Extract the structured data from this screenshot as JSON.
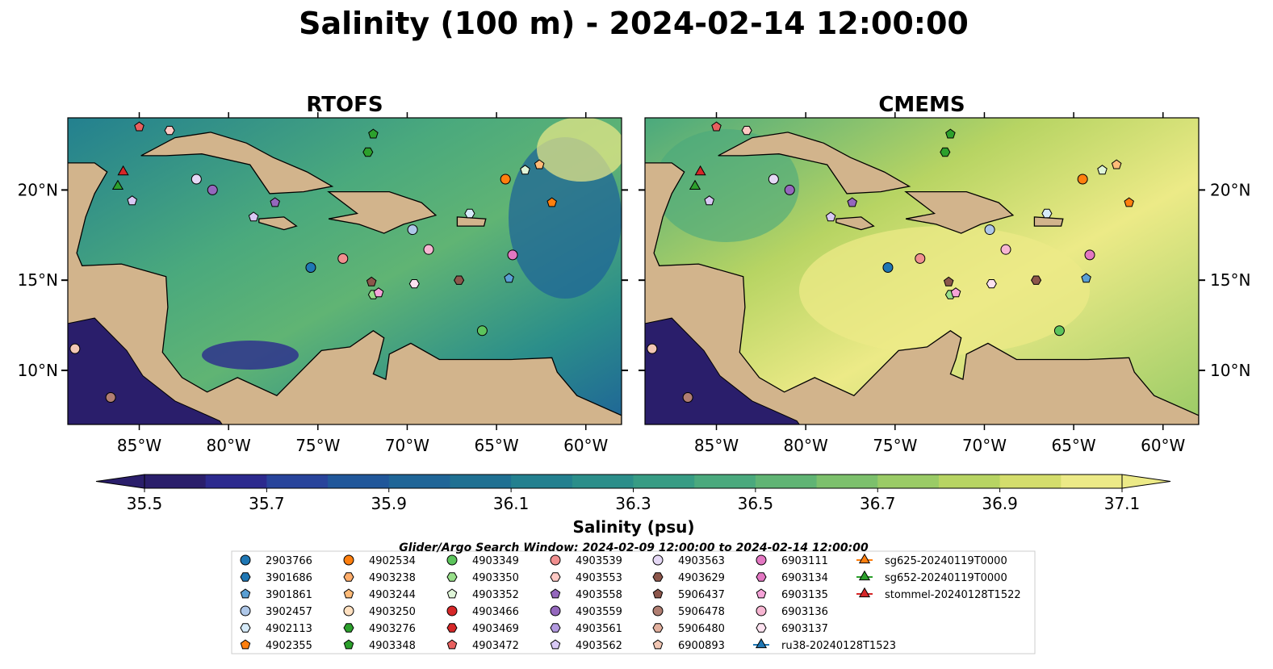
{
  "chart_data": {
    "type": "map",
    "title": "Salinity (100 m) - 2024-02-14 12:00:00",
    "panels": [
      {
        "title": "RTOFS"
      },
      {
        "title": "CMEMS"
      }
    ],
    "lon_range": [
      -89,
      -58
    ],
    "lat_range": [
      7,
      24
    ],
    "x_ticks": [
      "85°W",
      "80°W",
      "75°W",
      "70°W",
      "65°W",
      "60°W"
    ],
    "y_ticks": [
      "20°N",
      "15°N",
      "10°N"
    ],
    "colorbar": {
      "label": "Salinity (psu)",
      "min": 35.5,
      "max": 37.1,
      "ticks": [
        "35.5",
        "35.7",
        "35.9",
        "36.1",
        "36.3",
        "36.5",
        "36.7",
        "36.9",
        "37.1"
      ],
      "colors": [
        "#2a1e6b",
        "#2c2a8e",
        "#28449b",
        "#20579a",
        "#1f6597",
        "#1f7092",
        "#23808f",
        "#2b8e8a",
        "#379c84",
        "#4aa97d",
        "#60b474",
        "#7cc06c",
        "#9acb66",
        "#b7d463",
        "#d4dd6c",
        "#ecea87"
      ]
    },
    "legend_title": "Glider/Argo Search Window: 2024-02-09 12:00:00 to 2024-02-14 12:00:00",
    "legend": [
      {
        "label": "2903766",
        "color": "#1f77b4",
        "marker": "circle"
      },
      {
        "label": "3901686",
        "color": "#1f77b4",
        "marker": "hexagon"
      },
      {
        "label": "3901861",
        "color": "#5a9fd4",
        "marker": "pentagon"
      },
      {
        "label": "3902457",
        "color": "#aec7e8",
        "marker": "circle"
      },
      {
        "label": "4902113",
        "color": "#d6ebfa",
        "marker": "hexagon"
      },
      {
        "label": "4902355",
        "color": "#ff7f0e",
        "marker": "pentagon"
      },
      {
        "label": "4902534",
        "color": "#ff7f0e",
        "marker": "circle"
      },
      {
        "label": "4903238",
        "color": "#ffad6b",
        "marker": "hexagon"
      },
      {
        "label": "4903244",
        "color": "#ffbb78",
        "marker": "pentagon"
      },
      {
        "label": "4903250",
        "color": "#ffe0c0",
        "marker": "circle"
      },
      {
        "label": "4903276",
        "color": "#2ca02c",
        "marker": "hexagon"
      },
      {
        "label": "4903348",
        "color": "#2ca02c",
        "marker": "pentagon"
      },
      {
        "label": "4903349",
        "color": "#5cc45c",
        "marker": "circle"
      },
      {
        "label": "4903350",
        "color": "#98df8a",
        "marker": "hexagon"
      },
      {
        "label": "4903352",
        "color": "#dff5d8",
        "marker": "pentagon"
      },
      {
        "label": "4903466",
        "color": "#d62728",
        "marker": "circle"
      },
      {
        "label": "4903469",
        "color": "#d62728",
        "marker": "hexagon"
      },
      {
        "label": "4903472",
        "color": "#e8605f",
        "marker": "pentagon"
      },
      {
        "label": "4903539",
        "color": "#f08f8f",
        "marker": "circle"
      },
      {
        "label": "4903553",
        "color": "#ffc9c4",
        "marker": "hexagon"
      },
      {
        "label": "4903558",
        "color": "#9467bd",
        "marker": "pentagon"
      },
      {
        "label": "4903559",
        "color": "#9467bd",
        "marker": "circle"
      },
      {
        "label": "4903561",
        "color": "#b39ae0",
        "marker": "hexagon"
      },
      {
        "label": "4903562",
        "color": "#d9c9f5",
        "marker": "pentagon"
      },
      {
        "label": "4903563",
        "color": "#e5d8f5",
        "marker": "circle"
      },
      {
        "label": "4903629",
        "color": "#8c564b",
        "marker": "hexagon"
      },
      {
        "label": "5906437",
        "color": "#8c564b",
        "marker": "pentagon"
      },
      {
        "label": "5906478",
        "color": "#b07e72",
        "marker": "circle"
      },
      {
        "label": "5906480",
        "color": "#e2b09e",
        "marker": "hexagon"
      },
      {
        "label": "6900893",
        "color": "#f2c7b4",
        "marker": "pentagon"
      },
      {
        "label": "6903111",
        "color": "#e377c2",
        "marker": "circle"
      },
      {
        "label": "6903134",
        "color": "#e377c2",
        "marker": "hexagon"
      },
      {
        "label": "6903135",
        "color": "#f5a3d8",
        "marker": "pentagon"
      },
      {
        "label": "6903136",
        "color": "#f7b6d2",
        "marker": "circle"
      },
      {
        "label": "6903137",
        "color": "#fde2f0",
        "marker": "hexagon"
      },
      {
        "label": "ru38-20240128T1523",
        "color": "#1f77b4",
        "marker": "triangle"
      },
      {
        "label": "sg625-20240119T0000",
        "color": "#ff7f0e",
        "marker": "triangle"
      },
      {
        "label": "sg652-20240119T0000",
        "color": "#2ca02c",
        "marker": "triangle"
      },
      {
        "label": "stommel-20240128T1522",
        "color": "#d62728",
        "marker": "triangle"
      }
    ],
    "floats": [
      {
        "lon": -75.4,
        "lat": 15.7,
        "color": "#1f77b4",
        "marker": "circle"
      },
      {
        "lon": -66.5,
        "lat": 18.7,
        "color": "#d6ebfa",
        "marker": "hexagon"
      },
      {
        "lon": -64.3,
        "lat": 15.1,
        "color": "#5a9fd4",
        "marker": "pentagon"
      },
      {
        "lon": -69.7,
        "lat": 17.8,
        "color": "#aec7e8",
        "marker": "circle"
      },
      {
        "lon": -61.9,
        "lat": 19.3,
        "color": "#ff7f0e",
        "marker": "pentagon"
      },
      {
        "lon": -64.5,
        "lat": 20.6,
        "color": "#ff7f0e",
        "marker": "circle"
      },
      {
        "lon": -62.6,
        "lat": 21.4,
        "color": "#ffbb78",
        "marker": "pentagon"
      },
      {
        "lon": -72.2,
        "lat": 22.1,
        "color": "#2ca02c",
        "marker": "hexagon"
      },
      {
        "lon": -71.9,
        "lat": 23.1,
        "color": "#2ca02c",
        "marker": "pentagon"
      },
      {
        "lon": -65.8,
        "lat": 12.2,
        "color": "#5cc45c",
        "marker": "circle"
      },
      {
        "lon": -71.9,
        "lat": 14.2,
        "color": "#98df8a",
        "marker": "hexagon"
      },
      {
        "lon": -63.4,
        "lat": 21.1,
        "color": "#dff5d8",
        "marker": "pentagon"
      },
      {
        "lon": -85.9,
        "lat": 21.0,
        "color": "#d62728",
        "marker": "triangle"
      },
      {
        "lon": -85.0,
        "lat": 23.5,
        "color": "#e8605f",
        "marker": "pentagon"
      },
      {
        "lon": -73.6,
        "lat": 16.2,
        "color": "#f08f8f",
        "marker": "circle"
      },
      {
        "lon": -83.3,
        "lat": 23.3,
        "color": "#ffc9c4",
        "marker": "hexagon"
      },
      {
        "lon": -77.4,
        "lat": 19.3,
        "color": "#9467bd",
        "marker": "pentagon"
      },
      {
        "lon": -80.9,
        "lat": 20.0,
        "color": "#9467bd",
        "marker": "circle"
      },
      {
        "lon": -85.4,
        "lat": 19.4,
        "color": "#d9c9f5",
        "marker": "pentagon"
      },
      {
        "lon": -81.8,
        "lat": 20.6,
        "color": "#e5d8f5",
        "marker": "circle"
      },
      {
        "lon": -78.6,
        "lat": 18.5,
        "color": "#d9c9f5",
        "marker": "pentagon"
      },
      {
        "lon": -67.1,
        "lat": 15.0,
        "color": "#8c564b",
        "marker": "hexagon"
      },
      {
        "lon": -72.0,
        "lat": 14.9,
        "color": "#8c564b",
        "marker": "pentagon"
      },
      {
        "lon": -88.6,
        "lat": 11.2,
        "color": "#f2c7b4",
        "marker": "circle"
      },
      {
        "lon": -86.6,
        "lat": 8.5,
        "color": "#b07e72",
        "marker": "circle"
      },
      {
        "lon": -64.1,
        "lat": 16.4,
        "color": "#e377c2",
        "marker": "circle"
      },
      {
        "lon": -71.6,
        "lat": 14.3,
        "color": "#f5a3d8",
        "marker": "pentagon"
      },
      {
        "lon": -68.8,
        "lat": 16.7,
        "color": "#f7b6d2",
        "marker": "circle"
      },
      {
        "lon": -69.6,
        "lat": 14.8,
        "color": "#fde2f0",
        "marker": "hexagon"
      },
      {
        "lon": -86.2,
        "lat": 20.2,
        "color": "#2ca02c",
        "marker": "triangle"
      }
    ]
  }
}
